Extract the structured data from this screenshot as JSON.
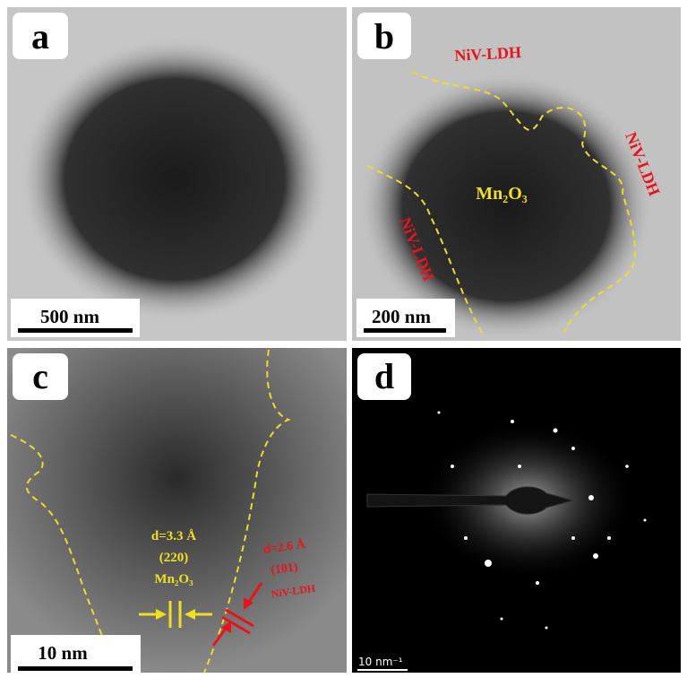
{
  "panels": [
    {
      "label": "a",
      "scale_bar": "500 nm"
    },
    {
      "label": "b",
      "scale_bar": "200 nm",
      "annotations": [
        "NiV-LDH",
        "NiV-LDH",
        "NiV-LDH",
        "Mn₂O₃"
      ]
    },
    {
      "label": "c",
      "scale_bar": "10 nm",
      "annotations": [
        "d=3.3 Å",
        "(220)",
        "Mn₂O₃",
        "d=2.6 Å",
        "(101)",
        "NiV-LDH"
      ]
    },
    {
      "label": "d",
      "scale_bar": "10 nm⁻¹"
    }
  ]
}
